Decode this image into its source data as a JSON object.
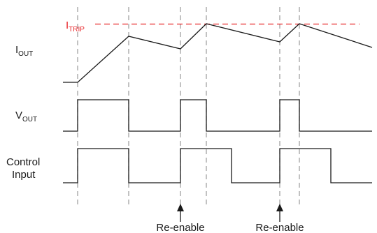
{
  "labels": {
    "trip": {
      "main": "I",
      "sub": "TRIP"
    },
    "iout": {
      "main": "I",
      "sub": "OUT"
    },
    "vout": {
      "main": "V",
      "sub": "OUT"
    },
    "control_line1": "Control",
    "control_line2": "Input"
  },
  "annotations": [
    {
      "text": "Re-enable"
    },
    {
      "text": "Re-enable"
    }
  ],
  "colors": {
    "trip_line": "#e8262a",
    "trip_label": "#e8262a",
    "signal": "#1a1a1a",
    "guide": "#9a9a9a",
    "text": "#1a1a1a"
  }
}
